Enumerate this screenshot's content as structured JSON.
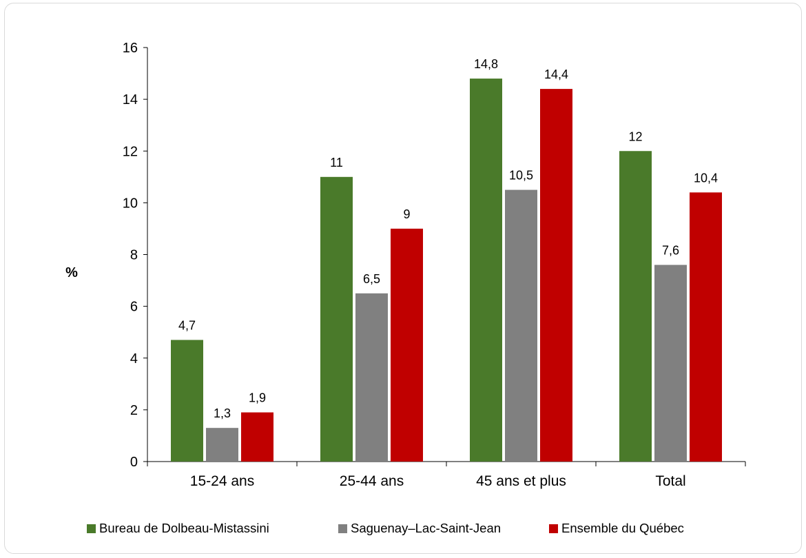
{
  "chart_data": {
    "type": "bar",
    "title": "",
    "xlabel": "",
    "ylabel": "%",
    "ylim": [
      0,
      16
    ],
    "yticks": [
      0,
      2,
      4,
      6,
      8,
      10,
      12,
      14,
      16
    ],
    "grid": false,
    "legend_position": "bottom",
    "categories": [
      "15-24 ans",
      "25-44 ans",
      "45 ans et plus",
      "Total"
    ],
    "series": [
      {
        "name": "Bureau de Dolbeau-Mistassini",
        "color": "#4a7a2a",
        "values": [
          4.7,
          11,
          14.8,
          12
        ],
        "labels": [
          "4,7",
          "11",
          "14,8",
          "12"
        ]
      },
      {
        "name": "Saguenay–Lac-Saint-Jean",
        "color": "#808080",
        "values": [
          1.3,
          6.5,
          10.5,
          7.6
        ],
        "labels": [
          "1,3",
          "6,5",
          "10,5",
          "7,6"
        ]
      },
      {
        "name": "Ensemble du Québec",
        "color": "#c00000",
        "values": [
          1.9,
          9,
          14.4,
          10.4
        ],
        "labels": [
          "1,9",
          "9",
          "14,4",
          "10,4"
        ]
      }
    ]
  }
}
